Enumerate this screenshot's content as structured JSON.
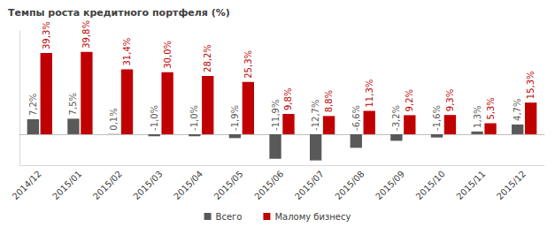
{
  "chart_data": {
    "type": "bar",
    "title": "Темпы роста кредитного портфеля (%)",
    "categories": [
      "2014/12",
      "2015/01",
      "2015/02",
      "2015/03",
      "2015/04",
      "2015/05",
      "2015/06",
      "2015/07",
      "2015/08",
      "2015/09",
      "2015/10",
      "2015/11",
      "2015/12"
    ],
    "series": [
      {
        "name": "Всего",
        "color": "#595959",
        "values": [
          7.2,
          7.5,
          0.1,
          -1.0,
          -1.0,
          -1.9,
          -11.9,
          -12.7,
          -6.6,
          -3.2,
          -1.6,
          1.3,
          4.7
        ],
        "value_labels": [
          "7,2%",
          "7,5%",
          "0,1%",
          "-1,0%",
          "-1,0%",
          "-1,9%",
          "-11,9%",
          "-12,7%",
          "-6,6%",
          "-3,2%",
          "-1,6%",
          "1,3%",
          "4,7%"
        ]
      },
      {
        "name": "Малому бизнесу",
        "color": "#c00000",
        "values": [
          39.3,
          39.8,
          31.4,
          30.0,
          28.2,
          25.3,
          9.8,
          8.8,
          11.3,
          9.2,
          9.3,
          5.3,
          15.3
        ],
        "value_labels": [
          "39,3%",
          "39,8%",
          "31,4%",
          "30,0%",
          "28,2%",
          "25,3%",
          "9,8%",
          "8,8%",
          "11,3%",
          "9,2%",
          "9,3%",
          "5,3%",
          "15,3%"
        ]
      }
    ],
    "ylim": [
      -15,
      50
    ],
    "grid": false,
    "legend": "bottom",
    "data_labels": true,
    "tick_labels": "x"
  }
}
